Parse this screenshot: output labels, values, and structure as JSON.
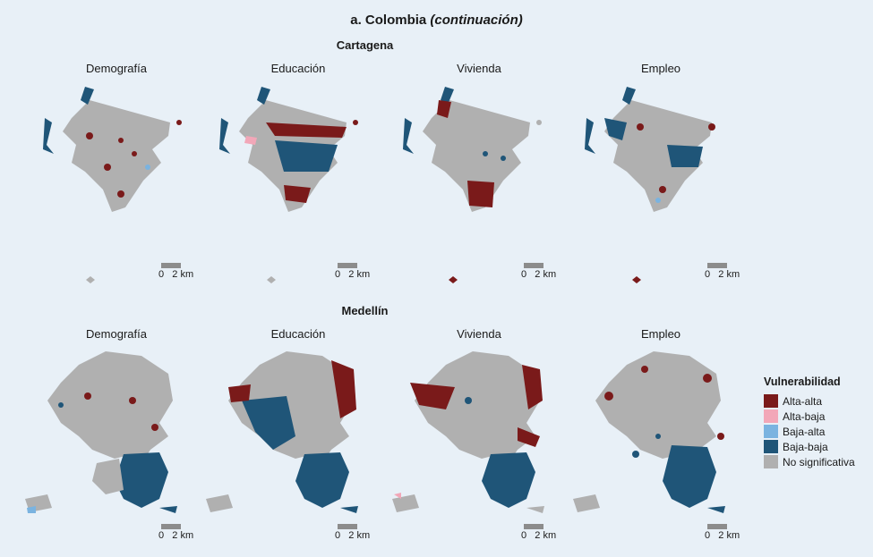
{
  "title": {
    "main": "a. Colombia",
    "suffix": "(continuación)"
  },
  "sections": [
    {
      "city": "Cartagena",
      "panels": [
        "Demografía",
        "Educación",
        "Vivienda",
        "Empleo"
      ]
    },
    {
      "city": "Medellín",
      "panels": [
        "Demografía",
        "Educación",
        "Vivienda",
        "Empleo"
      ]
    }
  ],
  "scale": {
    "zero": "0",
    "distance": "2 km"
  },
  "legend": {
    "title": "Vulnerabilidad",
    "items": [
      {
        "label": "Alta-alta",
        "color": "#7a1a1a"
      },
      {
        "label": "Alta-baja",
        "color": "#f2a7b8"
      },
      {
        "label": "Baja-alta",
        "color": "#7ab3e0"
      },
      {
        "label": "Baja-baja",
        "color": "#1f5578"
      },
      {
        "label": "No significativa",
        "color": "#b0b0b0"
      }
    ]
  },
  "colors": {
    "background": "#e8f0f7",
    "no_sig": "#b0b0b0",
    "high_high": "#7a1a1a",
    "low_low": "#1f5578",
    "low_high": "#7ab3e0",
    "high_low": "#f2a7b8"
  }
}
